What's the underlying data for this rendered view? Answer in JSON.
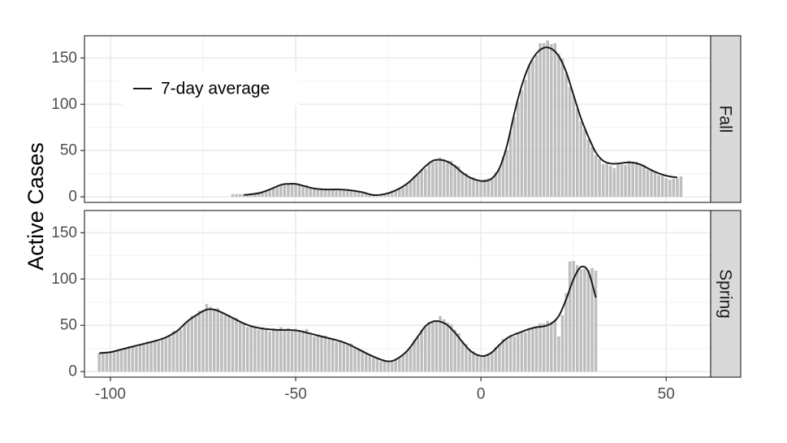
{
  "chart_data": {
    "type": "bar",
    "ylabel": "Active Cases",
    "xlabel": "",
    "xlim": [
      -107,
      62
    ],
    "ylim": [
      -6,
      174
    ],
    "x_ticks": [
      -100,
      -50,
      0,
      50
    ],
    "y_ticks": [
      0,
      50,
      100,
      150
    ],
    "grid": true,
    "legend": {
      "label": "7-day average",
      "placement": "top-left"
    },
    "colors": {
      "bar": "#bebebe",
      "line": "#1a1a1a",
      "strip": "#d9d9d9",
      "grid": "#ebebeb",
      "panel_border": "#333333"
    },
    "panels": [
      {
        "strip": "Fall",
        "bar_day_range": [
          -67,
          54
        ],
        "bar_knots": [
          [
            -67,
            3
          ],
          [
            -64,
            3
          ],
          [
            -60,
            4
          ],
          [
            -57,
            8
          ],
          [
            -54,
            12
          ],
          [
            -52,
            14
          ],
          [
            -50,
            14
          ],
          [
            -47,
            12
          ],
          [
            -45,
            9
          ],
          [
            -42,
            8
          ],
          [
            -38,
            8
          ],
          [
            -35,
            7
          ],
          [
            -32,
            4
          ],
          [
            -29,
            2
          ],
          [
            -26,
            3
          ],
          [
            -23,
            6
          ],
          [
            -20,
            14
          ],
          [
            -17,
            25
          ],
          [
            -15,
            32
          ],
          [
            -13,
            38
          ],
          [
            -12,
            40
          ],
          [
            -9,
            41
          ],
          [
            -7,
            35
          ],
          [
            -5,
            28
          ],
          [
            -3,
            22
          ],
          [
            -1,
            19
          ],
          [
            1,
            18
          ],
          [
            3,
            22
          ],
          [
            5,
            30
          ],
          [
            7,
            52
          ],
          [
            9,
            88
          ],
          [
            11,
            115
          ],
          [
            13,
            140
          ],
          [
            15,
            155
          ],
          [
            16,
            165
          ],
          [
            18,
            167
          ],
          [
            20,
            165
          ],
          [
            22,
            148
          ],
          [
            24,
            120
          ],
          [
            26,
            95
          ],
          [
            28,
            72
          ],
          [
            30,
            52
          ],
          [
            32,
            40
          ],
          [
            34,
            35
          ],
          [
            36,
            32
          ],
          [
            38,
            35
          ],
          [
            40,
            38
          ],
          [
            42,
            36
          ],
          [
            44,
            34
          ],
          [
            46,
            28
          ],
          [
            48,
            24
          ],
          [
            50,
            20
          ],
          [
            52,
            19
          ],
          [
            54,
            21
          ]
        ],
        "line_knots": [
          [
            -64,
            2
          ],
          [
            -60,
            4
          ],
          [
            -57,
            8
          ],
          [
            -54,
            13
          ],
          [
            -52,
            14
          ],
          [
            -50,
            14
          ],
          [
            -48,
            12
          ],
          [
            -45,
            9
          ],
          [
            -42,
            8
          ],
          [
            -38,
            8
          ],
          [
            -35,
            7
          ],
          [
            -32,
            5
          ],
          [
            -29,
            2
          ],
          [
            -26,
            3
          ],
          [
            -23,
            7
          ],
          [
            -20,
            14
          ],
          [
            -17,
            25
          ],
          [
            -15,
            33
          ],
          [
            -13,
            39
          ],
          [
            -11,
            40
          ],
          [
            -9,
            38
          ],
          [
            -7,
            33
          ],
          [
            -5,
            26
          ],
          [
            -3,
            21
          ],
          [
            -1,
            18
          ],
          [
            1,
            17
          ],
          [
            3,
            20
          ],
          [
            5,
            31
          ],
          [
            7,
            55
          ],
          [
            9,
            90
          ],
          [
            11,
            120
          ],
          [
            13,
            142
          ],
          [
            15,
            155
          ],
          [
            17,
            161
          ],
          [
            19,
            160
          ],
          [
            21,
            152
          ],
          [
            23,
            135
          ],
          [
            25,
            110
          ],
          [
            27,
            85
          ],
          [
            29,
            65
          ],
          [
            31,
            48
          ],
          [
            33,
            39
          ],
          [
            35,
            36
          ],
          [
            37,
            36
          ],
          [
            39,
            37
          ],
          [
            41,
            37
          ],
          [
            43,
            35
          ],
          [
            45,
            31
          ],
          [
            47,
            27
          ],
          [
            49,
            24
          ],
          [
            51,
            22
          ],
          [
            53,
            21
          ]
        ]
      },
      {
        "strip": "Spring",
        "bar_day_range": [
          -103,
          31
        ],
        "bar_knots": [
          [
            -103,
            20
          ],
          [
            -100,
            21
          ],
          [
            -97,
            24
          ],
          [
            -94,
            27
          ],
          [
            -91,
            30
          ],
          [
            -88,
            33
          ],
          [
            -85,
            37
          ],
          [
            -82,
            44
          ],
          [
            -79,
            55
          ],
          [
            -76,
            65
          ],
          [
            -74,
            72
          ],
          [
            -72,
            68
          ],
          [
            -70,
            65
          ],
          [
            -67,
            58
          ],
          [
            -64,
            52
          ],
          [
            -61,
            47
          ],
          [
            -58,
            45
          ],
          [
            -55,
            46
          ],
          [
            -52,
            46
          ],
          [
            -49,
            45
          ],
          [
            -47,
            44
          ],
          [
            -45,
            40
          ],
          [
            -42,
            37
          ],
          [
            -39,
            34
          ],
          [
            -36,
            31
          ],
          [
            -33,
            25
          ],
          [
            -30,
            18
          ],
          [
            -27,
            12
          ],
          [
            -25,
            10
          ],
          [
            -23,
            12
          ],
          [
            -20,
            22
          ],
          [
            -17,
            38
          ],
          [
            -15,
            50
          ],
          [
            -13,
            55
          ],
          [
            -11,
            58
          ],
          [
            -9,
            55
          ],
          [
            -7,
            45
          ],
          [
            -5,
            34
          ],
          [
            -3,
            24
          ],
          [
            -1,
            19
          ],
          [
            1,
            17
          ],
          [
            3,
            22
          ],
          [
            5,
            30
          ],
          [
            7,
            37
          ],
          [
            9,
            40
          ],
          [
            11,
            42
          ],
          [
            13,
            45
          ],
          [
            15,
            50
          ],
          [
            17,
            52
          ],
          [
            19,
            54
          ],
          [
            20,
            55
          ],
          [
            21,
            40
          ],
          [
            22,
            60
          ],
          [
            23,
            85
          ],
          [
            24,
            120
          ],
          [
            26,
            115
          ],
          [
            28,
            110
          ],
          [
            30,
            110
          ],
          [
            31,
            110
          ]
        ],
        "line_knots": [
          [
            -103,
            20
          ],
          [
            -100,
            21
          ],
          [
            -97,
            24
          ],
          [
            -94,
            27
          ],
          [
            -91,
            30
          ],
          [
            -88,
            33
          ],
          [
            -85,
            37
          ],
          [
            -82,
            44
          ],
          [
            -79,
            55
          ],
          [
            -76,
            63
          ],
          [
            -74,
            67
          ],
          [
            -72,
            67
          ],
          [
            -70,
            64
          ],
          [
            -67,
            58
          ],
          [
            -64,
            52
          ],
          [
            -61,
            48
          ],
          [
            -58,
            46
          ],
          [
            -55,
            45
          ],
          [
            -52,
            45
          ],
          [
            -49,
            44
          ],
          [
            -47,
            42
          ],
          [
            -45,
            40
          ],
          [
            -42,
            37
          ],
          [
            -39,
            34
          ],
          [
            -36,
            30
          ],
          [
            -33,
            24
          ],
          [
            -30,
            18
          ],
          [
            -27,
            13
          ],
          [
            -25,
            11
          ],
          [
            -23,
            13
          ],
          [
            -20,
            22
          ],
          [
            -17,
            38
          ],
          [
            -15,
            49
          ],
          [
            -13,
            54
          ],
          [
            -11,
            54
          ],
          [
            -9,
            50
          ],
          [
            -7,
            42
          ],
          [
            -5,
            32
          ],
          [
            -3,
            23
          ],
          [
            -1,
            18
          ],
          [
            1,
            17
          ],
          [
            3,
            21
          ],
          [
            5,
            29
          ],
          [
            7,
            36
          ],
          [
            9,
            40
          ],
          [
            11,
            43
          ],
          [
            13,
            46
          ],
          [
            15,
            48
          ],
          [
            17,
            49
          ],
          [
            19,
            52
          ],
          [
            21,
            60
          ],
          [
            23,
            78
          ],
          [
            25,
            100
          ],
          [
            27,
            113
          ],
          [
            29,
            108
          ],
          [
            31,
            80
          ]
        ]
      }
    ]
  }
}
